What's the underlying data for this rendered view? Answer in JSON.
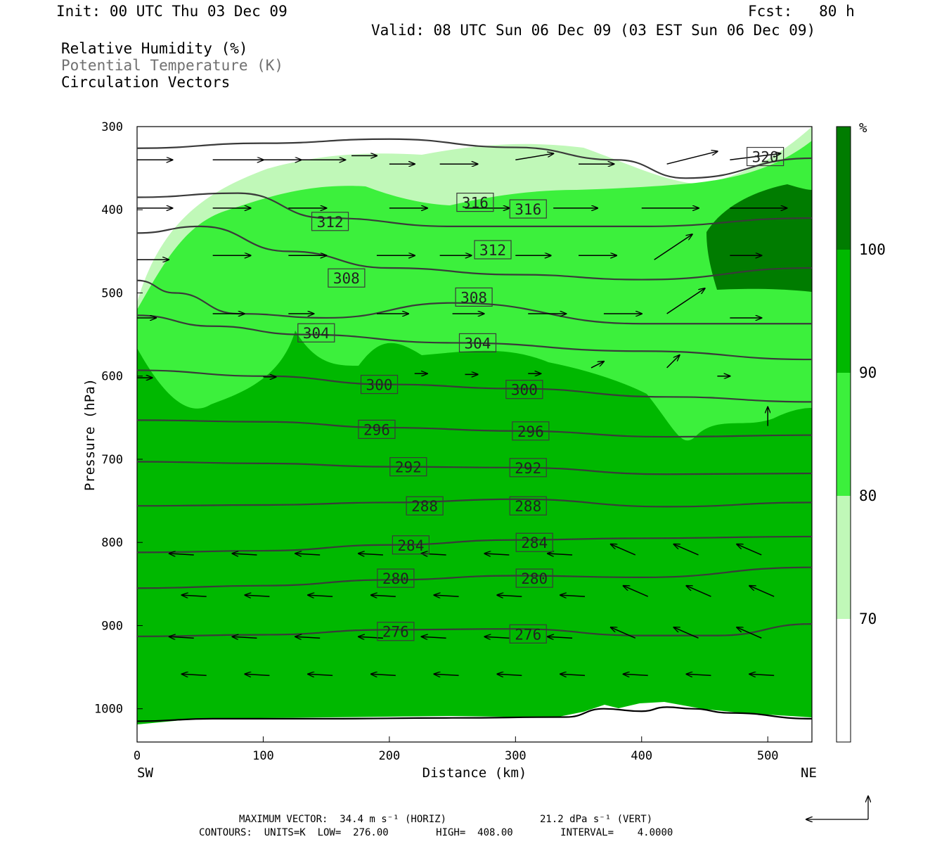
{
  "header": {
    "init": "Init: 00 UTC Thu 03 Dec 09",
    "fcst": "Fcst:   80 h",
    "valid": "Valid: 08 UTC Sun 06 Dec 09 (03 EST Sun 06 Dec 09)",
    "field1": "Relative Humidity (%)",
    "field2": "Potential Temperature (K)",
    "field3": "Circulation Vectors"
  },
  "colors": {
    "rh_lt70": "#ffffff",
    "rh_70_80": "#c0f8b8",
    "rh_80_90": "#3cf03c",
    "rh_90_100": "#00b800",
    "rh_gt100": "#007c00",
    "contour": "#3a3a3a"
  },
  "chart_data": {
    "type": "heatmap",
    "xlabel": "Distance (km)",
    "ylabel": "Pressure (hPa)",
    "xlim": [
      0,
      535
    ],
    "ylim": [
      1040,
      300
    ],
    "x_ticks": [
      "0",
      "100",
      "200",
      "300",
      "400",
      "500"
    ],
    "y_ticks": [
      "300",
      "400",
      "500",
      "600",
      "700",
      "800",
      "900",
      "1000"
    ],
    "left_end": "SW",
    "right_end": "NE",
    "colorbar": {
      "unit": "%",
      "labels": [
        "100",
        "90",
        "80",
        "70"
      ],
      "bands": [
        {
          "from": 100,
          "to": null,
          "color": "#007c00"
        },
        {
          "from": 90,
          "to": 100,
          "color": "#00b800"
        },
        {
          "from": 80,
          "to": 90,
          "color": "#3cf03c"
        },
        {
          "from": 70,
          "to": 80,
          "color": "#c0f8b8"
        },
        {
          "from": null,
          "to": 70,
          "color": "#ffffff"
        }
      ]
    },
    "surface_pressure": [
      [
        0,
        1015
      ],
      [
        60,
        1012
      ],
      [
        150,
        1012
      ],
      [
        250,
        1011
      ],
      [
        340,
        1010
      ],
      [
        370,
        1000
      ],
      [
        400,
        1003
      ],
      [
        420,
        998
      ],
      [
        440,
        1000
      ],
      [
        470,
        1005
      ],
      [
        535,
        1012
      ]
    ],
    "theta_contours": [
      {
        "value": 276,
        "labels": [
          [
            205,
            907
          ],
          [
            310,
            910
          ]
        ],
        "line": [
          [
            0,
            913
          ],
          [
            100,
            911
          ],
          [
            200,
            905
          ],
          [
            300,
            904
          ],
          [
            400,
            912
          ],
          [
            460,
            912
          ],
          [
            535,
            898
          ]
        ]
      },
      {
        "value": 280,
        "labels": [
          [
            205,
            843
          ],
          [
            315,
            843
          ]
        ],
        "line": [
          [
            0,
            855
          ],
          [
            100,
            852
          ],
          [
            200,
            845
          ],
          [
            300,
            840
          ],
          [
            400,
            842
          ],
          [
            535,
            830
          ]
        ]
      },
      {
        "value": 284,
        "labels": [
          [
            217,
            803
          ],
          [
            315,
            800
          ]
        ],
        "line": [
          [
            0,
            812
          ],
          [
            100,
            810
          ],
          [
            200,
            803
          ],
          [
            300,
            797
          ],
          [
            400,
            795
          ],
          [
            535,
            793
          ]
        ]
      },
      {
        "value": 288,
        "labels": [
          [
            228,
            756
          ],
          [
            310,
            756
          ]
        ],
        "line": [
          [
            0,
            756
          ],
          [
            100,
            755
          ],
          [
            200,
            752
          ],
          [
            300,
            748
          ],
          [
            420,
            757
          ],
          [
            535,
            752
          ]
        ]
      },
      {
        "value": 292,
        "labels": [
          [
            215,
            709
          ],
          [
            310,
            710
          ]
        ],
        "line": [
          [
            0,
            703
          ],
          [
            100,
            705
          ],
          [
            200,
            709
          ],
          [
            300,
            710
          ],
          [
            420,
            718
          ],
          [
            535,
            717
          ]
        ]
      },
      {
        "value": 296,
        "labels": [
          [
            190,
            664
          ],
          [
            312,
            666
          ]
        ],
        "line": [
          [
            0,
            653
          ],
          [
            100,
            655
          ],
          [
            200,
            662
          ],
          [
            300,
            666
          ],
          [
            420,
            673
          ],
          [
            535,
            671
          ]
        ]
      },
      {
        "value": 300,
        "labels": [
          [
            192,
            610
          ],
          [
            307,
            616
          ]
        ],
        "line": [
          [
            0,
            593
          ],
          [
            100,
            600
          ],
          [
            200,
            610
          ],
          [
            300,
            615
          ],
          [
            420,
            625
          ],
          [
            535,
            631
          ]
        ]
      },
      {
        "value": 304,
        "labels": [
          [
            142,
            548
          ],
          [
            270,
            560
          ]
        ],
        "line": [
          [
            0,
            527
          ],
          [
            60,
            540
          ],
          [
            130,
            550
          ],
          [
            250,
            560
          ],
          [
            400,
            570
          ],
          [
            535,
            580
          ]
        ]
      },
      {
        "value": 308,
        "labels": [
          [
            166,
            482
          ],
          [
            267,
            505
          ]
        ],
        "line": [
          [
            0,
            485
          ],
          [
            30,
            500
          ],
          [
            80,
            525
          ],
          [
            150,
            530
          ],
          [
            250,
            512
          ],
          [
            400,
            537
          ],
          [
            535,
            537
          ]
        ]
      },
      {
        "value": 312,
        "labels": [
          [
            153,
            414
          ],
          [
            282,
            448
          ]
        ],
        "line": [
          [
            0,
            428
          ],
          [
            50,
            420
          ],
          [
            120,
            450
          ],
          [
            200,
            470
          ],
          [
            300,
            478
          ],
          [
            400,
            484
          ],
          [
            535,
            470
          ]
        ]
      },
      {
        "value": 316,
        "labels": [
          [
            268,
            391
          ],
          [
            310,
            399
          ]
        ],
        "line": [
          [
            0,
            385
          ],
          [
            80,
            380
          ],
          [
            150,
            410
          ],
          [
            250,
            420
          ],
          [
            400,
            420
          ],
          [
            535,
            410
          ]
        ]
      },
      {
        "value": 320,
        "labels": [
          [
            498,
            336
          ]
        ],
        "line": [
          [
            0,
            326
          ],
          [
            100,
            320
          ],
          [
            200,
            315
          ],
          [
            300,
            325
          ],
          [
            380,
            340
          ],
          [
            435,
            362
          ],
          [
            535,
            338
          ]
        ]
      }
    ],
    "vectors": [
      [
        0,
        340,
        28,
        0
      ],
      [
        60,
        340,
        40,
        0
      ],
      [
        100,
        340,
        30,
        0
      ],
      [
        130,
        340,
        35,
        0
      ],
      [
        170,
        335,
        20,
        0
      ],
      [
        200,
        345,
        20,
        0
      ],
      [
        240,
        345,
        30,
        0
      ],
      [
        300,
        340,
        30,
        -5
      ],
      [
        350,
        345,
        28,
        0
      ],
      [
        420,
        345,
        40,
        -10
      ],
      [
        470,
        340,
        40,
        -5
      ],
      [
        0,
        398,
        28,
        0
      ],
      [
        60,
        398,
        30,
        0
      ],
      [
        120,
        398,
        30,
        0
      ],
      [
        200,
        398,
        30,
        0
      ],
      [
        260,
        398,
        35,
        0
      ],
      [
        330,
        398,
        35,
        0
      ],
      [
        400,
        398,
        45,
        0
      ],
      [
        470,
        398,
        45,
        0
      ],
      [
        0,
        460,
        25,
        0
      ],
      [
        60,
        455,
        30,
        0
      ],
      [
        120,
        455,
        30,
        0
      ],
      [
        190,
        455,
        30,
        0
      ],
      [
        240,
        455,
        25,
        0
      ],
      [
        300,
        455,
        28,
        0
      ],
      [
        350,
        455,
        30,
        0
      ],
      [
        410,
        460,
        30,
        -20
      ],
      [
        470,
        455,
        25,
        0
      ],
      [
        0,
        530,
        15,
        0
      ],
      [
        60,
        525,
        25,
        0
      ],
      [
        120,
        525,
        20,
        0
      ],
      [
        190,
        525,
        25,
        0
      ],
      [
        250,
        525,
        25,
        0
      ],
      [
        310,
        525,
        30,
        0
      ],
      [
        370,
        525,
        30,
        0
      ],
      [
        420,
        525,
        30,
        -20
      ],
      [
        470,
        530,
        25,
        0
      ],
      [
        0,
        602,
        12,
        0
      ],
      [
        100,
        601,
        10,
        0
      ],
      [
        220,
        597,
        10,
        0
      ],
      [
        260,
        598,
        10,
        0
      ],
      [
        310,
        597,
        10,
        0
      ],
      [
        360,
        590,
        10,
        -5
      ],
      [
        420,
        590,
        10,
        -10
      ],
      [
        460,
        600,
        10,
        0
      ],
      [
        500,
        660,
        0,
        -15
      ]
    ]
  },
  "footer": {
    "max_vector": "MAXIMUM VECTOR:  34.4 m s⁻¹ (HORIZ)",
    "max_vert": "21.2 dPa s⁻¹ (VERT)",
    "contours": "CONTOURS:  UNITS=K  LOW=  276.00        HIGH=  408.00        INTERVAL=    4.0000"
  }
}
